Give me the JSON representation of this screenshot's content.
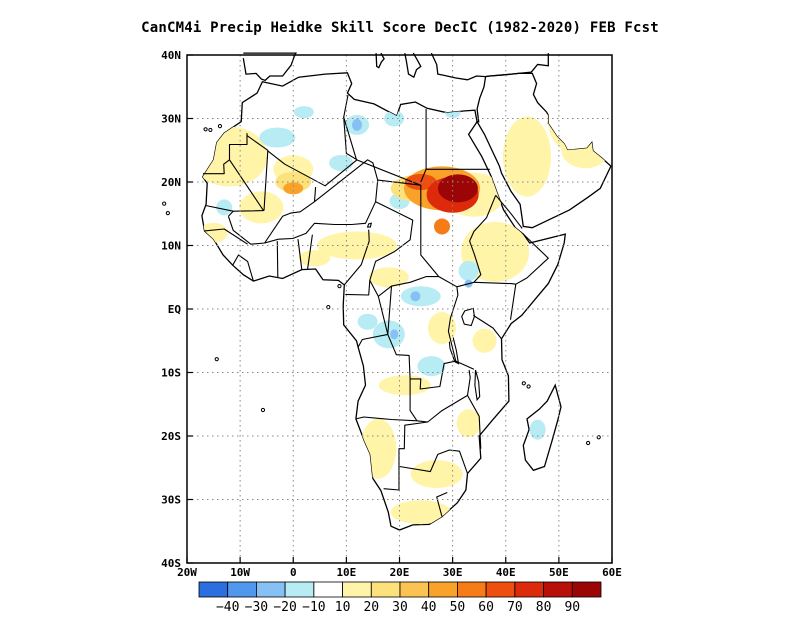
{
  "title": "CanCM4i Precip Heidke Skill Score DecIC (1982-2020) FEB Fcst",
  "map": {
    "lon_range": [
      -20,
      60
    ],
    "lat_range": [
      -40,
      40
    ],
    "lat_ticks": [
      {
        "value": 40,
        "label": "40N"
      },
      {
        "value": 30,
        "label": "30N"
      },
      {
        "value": 20,
        "label": "20N"
      },
      {
        "value": 10,
        "label": "10N"
      },
      {
        "value": 0,
        "label": "EQ"
      },
      {
        "value": -10,
        "label": "10S"
      },
      {
        "value": -20,
        "label": "20S"
      },
      {
        "value": -30,
        "label": "30S"
      },
      {
        "value": -40,
        "label": "40S"
      }
    ],
    "lon_ticks": [
      {
        "value": -20,
        "label": "20W"
      },
      {
        "value": -10,
        "label": "10W"
      },
      {
        "value": 0,
        "label": "0"
      },
      {
        "value": 10,
        "label": "10E"
      },
      {
        "value": 20,
        "label": "20E"
      },
      {
        "value": 30,
        "label": "30E"
      },
      {
        "value": 40,
        "label": "40E"
      },
      {
        "value": 50,
        "label": "50E"
      },
      {
        "value": 60,
        "label": "60E"
      }
    ],
    "grid": true
  },
  "colorbar": {
    "colors": [
      "#2a6ee0",
      "#4f98ee",
      "#86c0f4",
      "#b8ecf4",
      "#ffffff",
      "#fff4a8",
      "#fde27c",
      "#fbc452",
      "#f9a22a",
      "#f57c16",
      "#ee4e0e",
      "#dc2a0a",
      "#b81008",
      "#9c0505"
    ],
    "labels": [
      "-40",
      "-30",
      "-20",
      "-10",
      "10",
      "20",
      "30",
      "40",
      "50",
      "60",
      "70",
      "80",
      "90"
    ]
  }
}
